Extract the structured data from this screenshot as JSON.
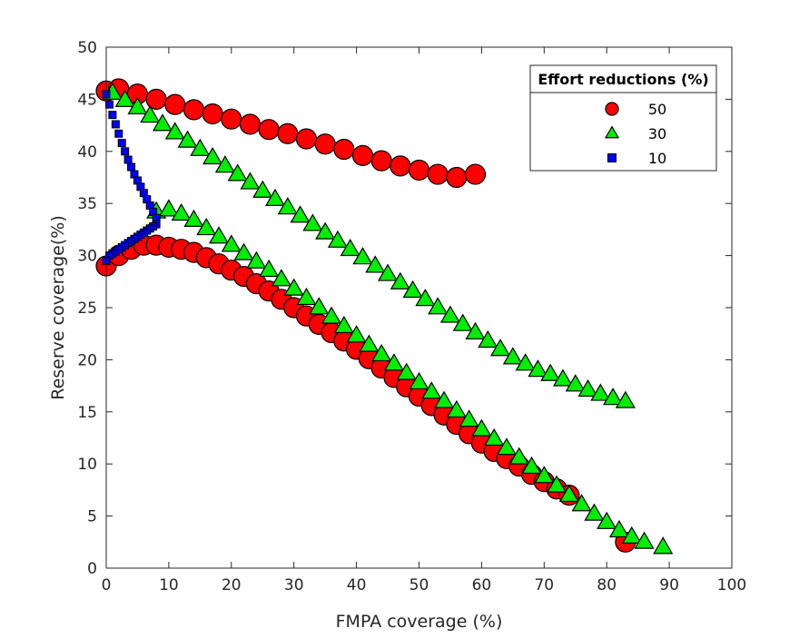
{
  "chart_data": {
    "type": "scatter",
    "xlabel": "FMPA coverage (%)",
    "ylabel": "Reserve coverage(%)",
    "xlim": [
      0,
      100
    ],
    "ylim": [
      0,
      50
    ],
    "xticks": [
      0,
      10,
      20,
      30,
      40,
      50,
      60,
      70,
      80,
      90,
      100
    ],
    "yticks": [
      0,
      5,
      10,
      15,
      20,
      25,
      30,
      35,
      40,
      45,
      50
    ],
    "grid": false,
    "legend": {
      "title": "Effort reductions (%)",
      "placement": "top-right"
    },
    "series": [
      {
        "name": "50",
        "marker": "circle",
        "color": "#ff0000",
        "branches": [
          {
            "x": [
              0,
              2,
              5,
              8,
              11,
              14,
              17,
              20,
              23,
              26,
              29,
              32,
              35,
              38,
              41,
              44,
              47,
              50,
              53,
              56,
              59
            ],
            "y": [
              45.8,
              46.0,
              45.5,
              45.0,
              44.5,
              44.0,
              43.6,
              43.1,
              42.6,
              42.1,
              41.7,
              41.2,
              40.7,
              40.2,
              39.6,
              39.1,
              38.6,
              38.2,
              37.8,
              37.5,
              37.8
            ]
          },
          {
            "x": [
              0,
              2,
              4,
              6,
              8,
              10,
              12,
              14,
              16,
              18,
              20,
              22,
              24,
              26,
              28,
              30,
              32,
              34,
              36,
              38,
              40,
              42,
              44,
              46,
              48,
              50,
              52,
              54,
              56,
              58,
              60,
              62,
              64,
              66,
              68,
              70,
              72,
              74,
              83
            ],
            "y": [
              29.0,
              30.0,
              30.6,
              31.0,
              31.0,
              30.8,
              30.6,
              30.3,
              29.8,
              29.2,
              28.6,
              28.0,
              27.3,
              26.6,
              25.8,
              25.0,
              24.2,
              23.4,
              22.6,
              21.8,
              21.0,
              20.1,
              19.2,
              18.3,
              17.4,
              16.5,
              15.6,
              14.7,
              13.8,
              12.9,
              12.0,
              11.2,
              10.5,
              9.8,
              9.0,
              8.3,
              7.6,
              7.0,
              2.5
            ]
          }
        ]
      },
      {
        "name": "30",
        "marker": "triangle",
        "color": "#00ee00",
        "branches": [
          {
            "x": [
              1,
              3,
              5,
              7,
              9,
              11,
              13,
              15,
              17,
              19,
              21,
              23,
              25,
              27,
              29,
              31,
              33,
              35,
              37,
              39,
              41,
              43,
              45,
              47,
              49,
              51,
              53,
              55,
              57,
              59,
              61,
              63,
              65,
              67,
              69,
              71,
              73,
              75,
              77,
              79,
              81,
              83
            ],
            "y": [
              45.6,
              44.9,
              44.2,
              43.4,
              42.6,
              41.8,
              41.0,
              40.2,
              39.4,
              38.6,
              37.8,
              37.0,
              36.2,
              35.4,
              34.6,
              33.8,
              33.0,
              32.2,
              31.4,
              30.6,
              29.8,
              29.0,
              28.2,
              27.4,
              26.6,
              25.8,
              25.0,
              24.2,
              23.4,
              22.6,
              21.8,
              21.0,
              20.2,
              19.6,
              19.0,
              18.6,
              18.1,
              17.6,
              17.1,
              16.7,
              16.3,
              16.0
            ]
          },
          {
            "x": [
              8,
              10,
              12,
              14,
              16,
              18,
              20,
              22,
              24,
              26,
              28,
              30,
              32,
              34,
              36,
              38,
              40,
              42,
              44,
              46,
              48,
              50,
              52,
              54,
              56,
              58,
              60,
              62,
              64,
              66,
              68,
              70,
              72,
              74,
              76,
              78,
              80,
              82,
              84,
              86,
              89
            ],
            "y": [
              34.2,
              34.4,
              34.0,
              33.4,
              32.6,
              31.8,
              31.0,
              30.2,
              29.4,
              28.6,
              27.7,
              26.8,
              25.9,
              25.0,
              24.1,
              23.2,
              22.3,
              21.4,
              20.5,
              19.6,
              18.7,
              17.8,
              16.9,
              16.0,
              15.1,
              14.2,
              13.3,
              12.4,
              11.5,
              10.6,
              9.7,
              8.8,
              7.9,
              7.0,
              6.1,
              5.2,
              4.4,
              3.6,
              3.0,
              2.5,
              2.0
            ]
          }
        ]
      },
      {
        "name": "10",
        "marker": "square",
        "color": "#0000ff",
        "branches": [
          {
            "x": [
              0,
              0.5,
              1,
              1.5,
              2,
              2.5,
              3,
              3.5,
              4,
              4.5,
              5,
              5.5,
              6,
              6.5,
              7,
              7.5,
              8,
              8,
              7.5,
              7,
              6.5,
              6,
              5.5,
              5,
              4.5,
              4,
              3.5,
              3,
              2.5,
              2,
              1.5,
              1,
              0.5,
              0
            ],
            "y": [
              45.5,
              44.5,
              43.5,
              42.6,
              41.7,
              40.8,
              40.0,
              39.2,
              38.5,
              37.8,
              37.2,
              36.6,
              36.0,
              35.4,
              34.8,
              34.2,
              33.6,
              33.0,
              32.8,
              32.6,
              32.4,
              32.2,
              32.0,
              31.8,
              31.6,
              31.4,
              31.2,
              31.0,
              30.8,
              30.6,
              30.4,
              30.2,
              30.0,
              29.5
            ]
          }
        ]
      }
    ]
  }
}
